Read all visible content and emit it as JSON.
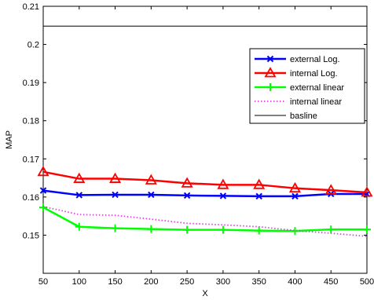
{
  "chart_data": {
    "type": "line",
    "xlabel": "X",
    "ylabel": "MAP",
    "xlim": [
      50,
      500
    ],
    "ylim": [
      0.14,
      0.21
    ],
    "xticks": [
      "50",
      "100",
      "150",
      "200",
      "250",
      "300",
      "350",
      "400",
      "450",
      "500"
    ],
    "yticks": [
      "0.15",
      "0.16",
      "0.17",
      "0.18",
      "0.19",
      "0.2",
      "0.21"
    ],
    "grid": false,
    "legend_position": "right",
    "x": [
      50,
      100,
      150,
      200,
      250,
      300,
      350,
      400,
      450,
      500
    ],
    "series": [
      {
        "name": "external Log.",
        "color": "#0000ff",
        "marker": "x",
        "style": "solid",
        "values": [
          0.1617,
          0.1605,
          0.1606,
          0.1606,
          0.1604,
          0.1603,
          0.1602,
          0.1602,
          0.1608,
          0.1608
        ]
      },
      {
        "name": "internal Log.",
        "color": "#ff0000",
        "marker": "triangle",
        "style": "solid",
        "values": [
          0.1666,
          0.1648,
          0.1648,
          0.1644,
          0.1636,
          0.1632,
          0.1632,
          0.1623,
          0.1618,
          0.1612
        ]
      },
      {
        "name": "external linear",
        "color": "#00ff00",
        "marker": "plus",
        "style": "solid",
        "values": [
          0.1573,
          0.1522,
          0.1518,
          0.1516,
          0.1514,
          0.1514,
          0.1512,
          0.1511,
          0.1515,
          0.1515
        ]
      },
      {
        "name": "internal linear",
        "color": "#e040e0",
        "marker": "none",
        "style": "dotted",
        "values": [
          0.1575,
          0.1554,
          0.1552,
          0.1542,
          0.1531,
          0.1527,
          0.1522,
          0.1512,
          0.1505,
          0.1497
        ]
      },
      {
        "name": "basline",
        "color": "#000000",
        "marker": "none",
        "style": "solid",
        "values": [
          0.2048,
          0.2048,
          0.2048,
          0.2048,
          0.2048,
          0.2048,
          0.2048,
          0.2048,
          0.2048,
          0.2048
        ]
      }
    ]
  }
}
